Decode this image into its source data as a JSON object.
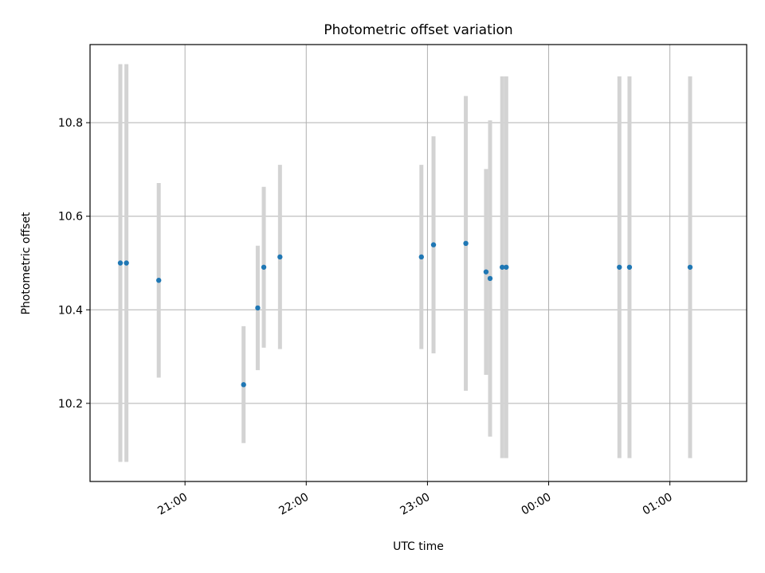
{
  "chart_data": {
    "type": "scatter",
    "title": "Photometric offset variation",
    "xlabel": "UTC time",
    "ylabel": "Photometric offset",
    "x_range": [
      "20:13",
      "01:38"
    ],
    "ylim": [
      10.033,
      10.967
    ],
    "x_ticks": [
      "21:00",
      "22:00",
      "23:00",
      "00:00",
      "01:00"
    ],
    "y_ticks": [
      "10.2",
      "10.4",
      "10.6",
      "10.8"
    ],
    "grid": true,
    "marker_color": "#1f77b4",
    "errorbar_color": "#d3d3d3",
    "points": [
      {
        "time": "20:28",
        "y": 10.5,
        "yerr": 0.425
      },
      {
        "time": "20:31",
        "y": 10.5,
        "yerr": 0.425
      },
      {
        "time": "20:47",
        "y": 10.463,
        "yerr": 0.208
      },
      {
        "time": "21:29",
        "y": 10.24,
        "yerr": 0.125
      },
      {
        "time": "21:36",
        "y": 10.404,
        "yerr": 0.133
      },
      {
        "time": "21:39",
        "y": 10.491,
        "yerr": 0.172
      },
      {
        "time": "21:47",
        "y": 10.513,
        "yerr": 0.197
      },
      {
        "time": "22:57",
        "y": 10.513,
        "yerr": 0.197
      },
      {
        "time": "23:03",
        "y": 10.539,
        "yerr": 0.232
      },
      {
        "time": "23:19",
        "y": 10.542,
        "yerr": 0.315
      },
      {
        "time": "23:29",
        "y": 10.481,
        "yerr": 0.22
      },
      {
        "time": "23:31",
        "y": 10.467,
        "yerr": 0.338
      },
      {
        "time": "23:37",
        "y": 10.491,
        "yerr": 0.408
      },
      {
        "time": "23:39",
        "y": 10.491,
        "yerr": 0.408
      },
      {
        "time": "00:35",
        "y": 10.491,
        "yerr": 0.408
      },
      {
        "time": "00:40",
        "y": 10.491,
        "yerr": 0.408
      },
      {
        "time": "01:10",
        "y": 10.491,
        "yerr": 0.408
      }
    ]
  }
}
